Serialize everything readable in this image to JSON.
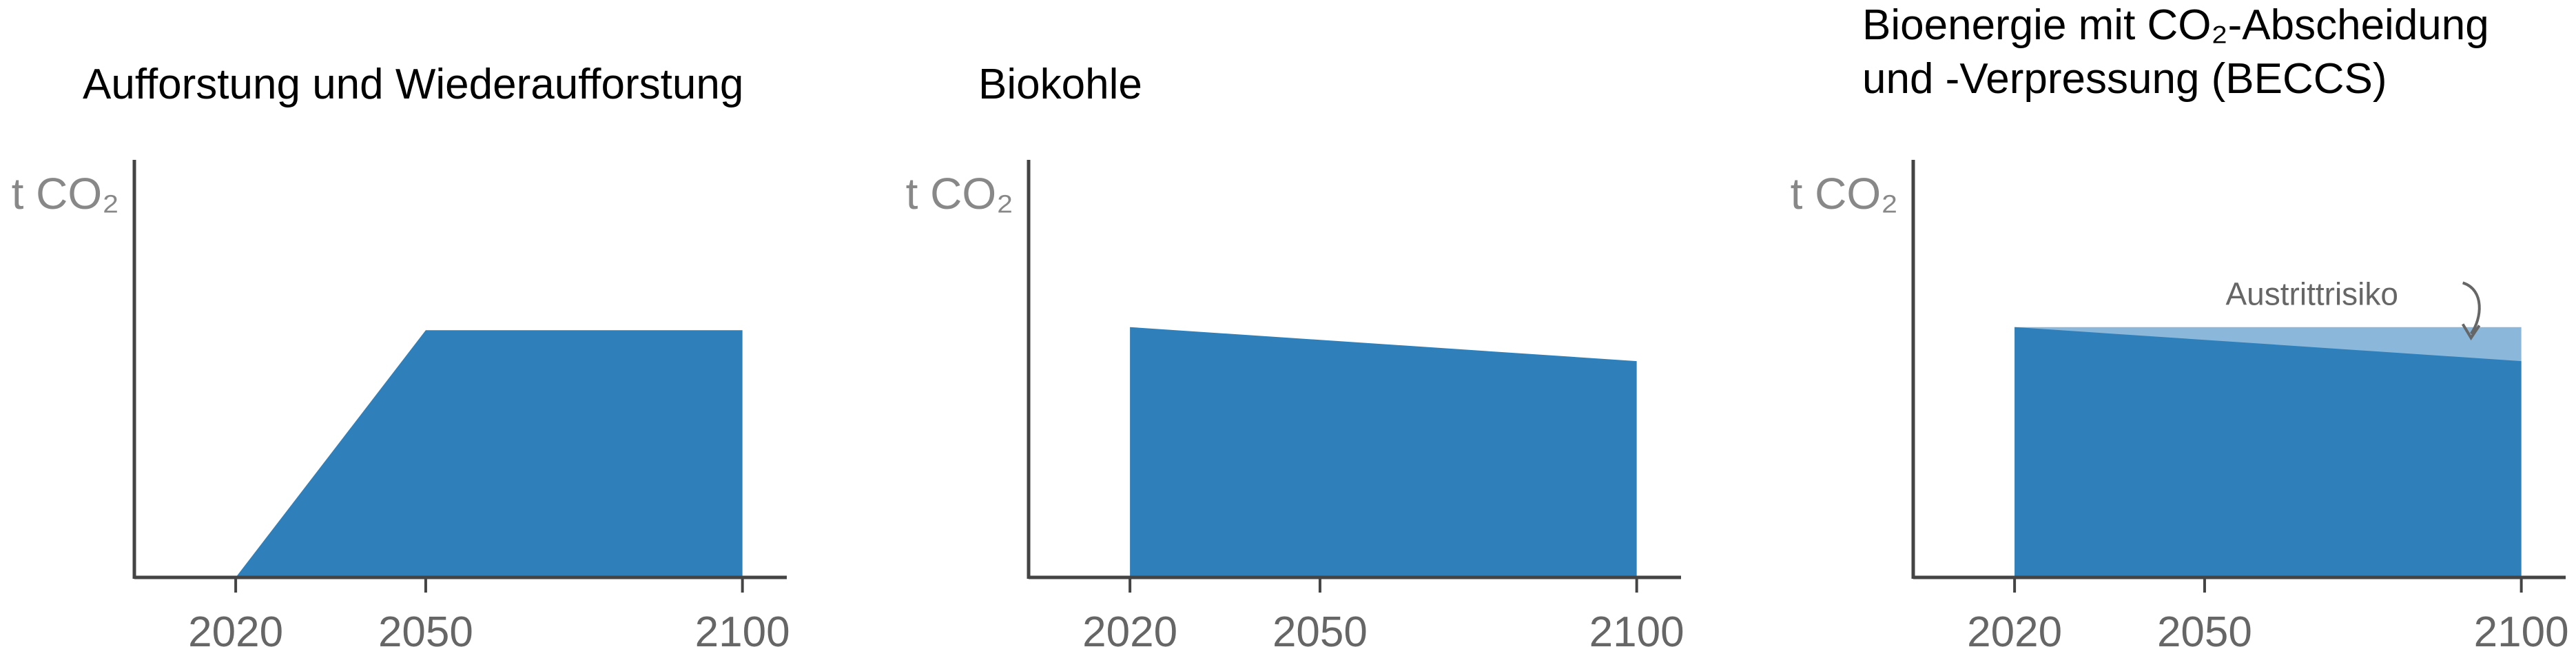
{
  "colors": {
    "area": "#2e7fba",
    "risk_area": "#8bb7da",
    "axis": "#444444",
    "title": "#000000",
    "ylabel": "#888888",
    "tick": "#666666"
  },
  "chart_data": [
    {
      "type": "area",
      "title": "Aufforstung und Wiederaufforstung",
      "ylabel": "t CO₂",
      "xlabel": "",
      "xticks": [
        "2020",
        "2050",
        "2100"
      ],
      "xlim": [
        2004,
        2107
      ],
      "ylim": [
        0,
        1
      ],
      "series": [
        {
          "x": [
            2020,
            2050,
            2100
          ],
          "y": [
            0,
            0.8,
            0.8
          ],
          "color": "#2e7fba"
        }
      ]
    },
    {
      "type": "area",
      "title": "Biokohle",
      "ylabel": "t CO₂",
      "xlabel": "",
      "xticks": [
        "2020",
        "2050",
        "2100"
      ],
      "xlim": [
        2004,
        2107
      ],
      "ylim": [
        0,
        1
      ],
      "series": [
        {
          "x": [
            2020,
            2100
          ],
          "y": [
            0.81,
            0.7
          ],
          "color": "#2e7fba"
        }
      ]
    },
    {
      "type": "area",
      "title": [
        "Bioenergie mit CO₂-Abscheidung",
        "und -Verpressung (BECCS)"
      ],
      "ylabel": "t CO₂",
      "xlabel": "",
      "xticks": [
        "2020",
        "2050",
        "2100"
      ],
      "xlim": [
        2004,
        2107
      ],
      "ylim": [
        0,
        1
      ],
      "series": [
        {
          "x": [
            2020,
            2100
          ],
          "y": [
            0.81,
            0.81
          ],
          "color": "#8bb7da"
        },
        {
          "x": [
            2020,
            2100
          ],
          "y": [
            0.81,
            0.7
          ],
          "color": "#2e7fba"
        }
      ],
      "annotations": [
        {
          "text": "Austrittrisiko",
          "x": 2080,
          "y": 0.9
        }
      ]
    }
  ]
}
